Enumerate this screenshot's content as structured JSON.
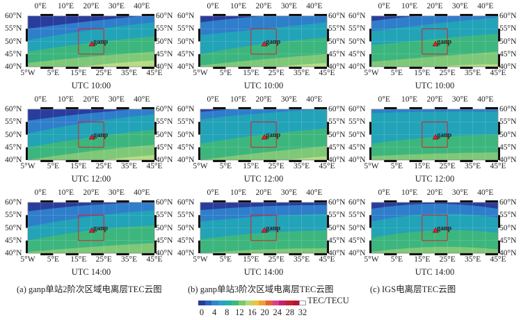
{
  "lon_labels_top": [
    "0°E",
    "10°E",
    "20°E",
    "30°E",
    "40°E"
  ],
  "lon_labels_bottom": [
    "5°W",
    "5°E",
    "15°E",
    "25°E",
    "35°E",
    "45°E"
  ],
  "lat_labels": [
    "60°N",
    "55°N",
    "50°N",
    "45°N",
    "40°N"
  ],
  "station": "ganp",
  "rows": [
    "UTC 10:00",
    "UTC 12:00",
    "UTC 14:00"
  ],
  "captions": [
    "(a) ganp单站2阶次区域电离层TEC云图",
    "(b) ganp单站3阶次区域电离层TEC云图",
    "(c) IGS电离层TEC云图"
  ],
  "colorbar": {
    "title": "TEC/TECU",
    "ticks": [
      "0",
      "4",
      "8",
      "12",
      "16",
      "20",
      "24",
      "28",
      "32"
    ],
    "colors": [
      "#2b3a98",
      "#2763b8",
      "#2f86cc",
      "#26a2c4",
      "#22b1a6",
      "#3cba7e",
      "#7cc86c",
      "#b2d87a",
      "#e8c832",
      "#f0a030",
      "#e8603a",
      "#d8408a",
      "#c82070",
      "#c02030",
      "#b01830",
      "#ffffff"
    ]
  },
  "band_colors": [
    "#2a3d9c",
    "#2f7ecb",
    "#22a3b8",
    "#3db67e",
    "#7fc878",
    "#b7dc86"
  ],
  "marker_color": "#e02020"
}
